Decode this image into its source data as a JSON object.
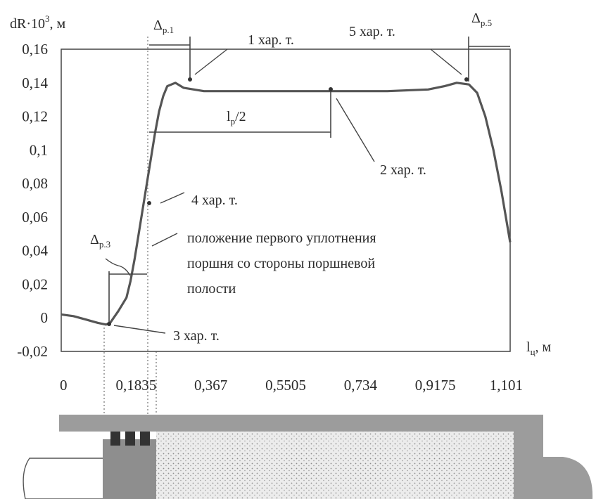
{
  "chart_data": {
    "type": "line",
    "ylabel": "dR·10",
    "ylabel_sup": "3",
    "ylabel_unit": ", м",
    "xlabel": "l",
    "xlabel_sub": "ц",
    "xlabel_unit": ", м",
    "xlim": [
      0,
      1.101
    ],
    "ylim": [
      -0.02,
      0.16
    ],
    "y_ticks": [
      "0,16",
      "0,14",
      "0,12",
      "0,1",
      "0,08",
      "0,06",
      "0,04",
      "0,02",
      "0",
      "-0,02"
    ],
    "y_tick_values": [
      0.16,
      0.14,
      0.12,
      0.1,
      0.08,
      0.06,
      0.04,
      0.02,
      0,
      -0.02
    ],
    "x_ticks": [
      "0",
      "0,1835",
      "0,367",
      "0,5505",
      "0,734",
      "0,9175",
      "1,101"
    ],
    "x_tick_values": [
      0,
      0.1835,
      0.367,
      0.5505,
      0.734,
      0.9175,
      1.101
    ],
    "grid": false,
    "series": [
      {
        "x": [
          0,
          0.03,
          0.06,
          0.09,
          0.11,
          0.12,
          0.14,
          0.16,
          0.17,
          0.18,
          0.19,
          0.2,
          0.21,
          0.22,
          0.23,
          0.24,
          0.25,
          0.26,
          0.28,
          0.3,
          0.35,
          0.45,
          0.6,
          0.8,
          0.9,
          0.94,
          0.97,
          1.0,
          1.02,
          1.04,
          1.06,
          1.08,
          1.101
        ],
        "y": [
          0.002,
          0.001,
          -0.001,
          -0.003,
          -0.004,
          -0.003,
          0.004,
          0.012,
          0.022,
          0.035,
          0.05,
          0.065,
          0.08,
          0.095,
          0.11,
          0.123,
          0.132,
          0.138,
          0.14,
          0.137,
          0.135,
          0.135,
          0.135,
          0.135,
          0.136,
          0.138,
          0.14,
          0.139,
          0.134,
          0.12,
          0.1,
          0.075,
          0.045
        ]
      }
    ],
    "annotations": {
      "char1": "1 хар. т.",
      "char2": "2 хар. т.",
      "char3": "3 хар. т.",
      "char4": "4 хар. т.",
      "char5": "5 хар. т.",
      "lp_main": "l",
      "lp_sub": "p",
      "lp_rest": "/2",
      "delta": "Δ",
      "delta_p1_sub": "p.1",
      "delta_p3_sub": "p.3",
      "delta_p5_sub": "p.5",
      "seal_note": [
        "положение первого уплотнения",
        "поршня со стороны поршневой",
        "полости"
      ]
    }
  }
}
